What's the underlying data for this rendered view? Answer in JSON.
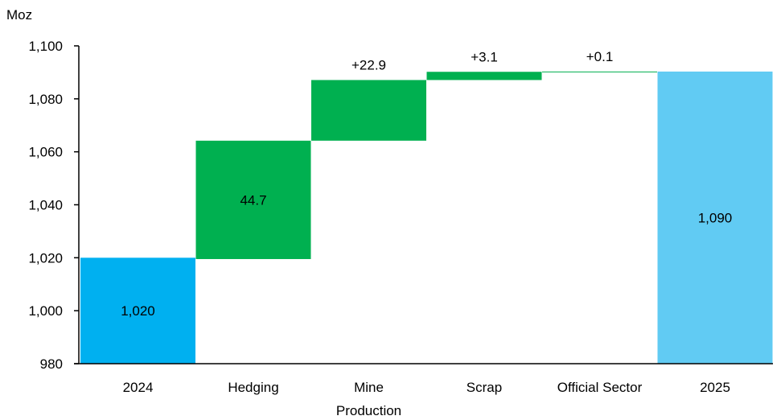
{
  "chart_data": {
    "type": "waterfall",
    "unit_label": "Moz",
    "ylim": [
      980,
      1100
    ],
    "y_ticks": [
      980,
      1000,
      1020,
      1040,
      1060,
      1080,
      1100
    ],
    "y_tick_labels": [
      "980",
      "1,000",
      "1,020",
      "1,040",
      "1,060",
      "1,080",
      "1,100"
    ],
    "grid": false,
    "categories": [
      {
        "lines": [
          "2024"
        ]
      },
      {
        "lines": [
          "Hedging"
        ]
      },
      {
        "lines": [
          "Mine",
          "Production"
        ]
      },
      {
        "lines": [
          "Scrap"
        ]
      },
      {
        "lines": [
          "Official Sector"
        ]
      },
      {
        "lines": [
          "2025"
        ]
      }
    ],
    "bars": [
      {
        "kind": "total",
        "start": 980,
        "end": 1020,
        "label": "1,020",
        "label_pos": "inside",
        "color": "#00B0F0"
      },
      {
        "kind": "increase",
        "start": 1019.5,
        "end": 1064.2,
        "label": "44.7",
        "label_pos": "inside",
        "color": "#00B050"
      },
      {
        "kind": "increase",
        "start": 1064.2,
        "end": 1087.1,
        "label": "+22.9",
        "label_pos": "above",
        "color": "#00B050"
      },
      {
        "kind": "increase",
        "start": 1087.1,
        "end": 1090.2,
        "label": "+3.1",
        "label_pos": "above",
        "color": "#00B050"
      },
      {
        "kind": "increase",
        "start": 1090.2,
        "end": 1090.3,
        "label": "+0.1",
        "label_pos": "above",
        "color": "#00B050"
      },
      {
        "kind": "total",
        "start": 980,
        "end": 1090.3,
        "label": "1,090",
        "label_pos": "inside",
        "color": "#61CBF3"
      }
    ]
  }
}
